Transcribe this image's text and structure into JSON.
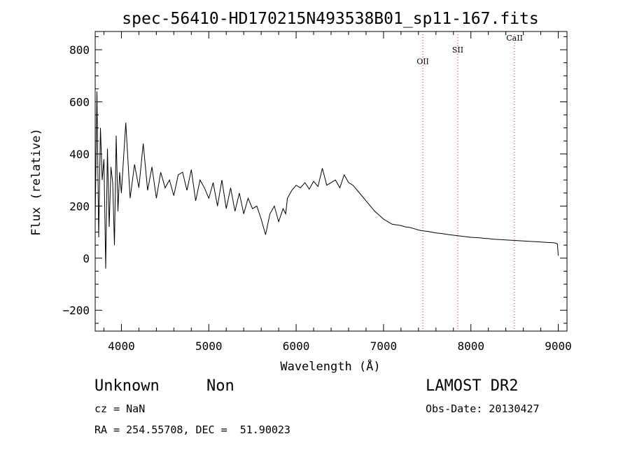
{
  "chart_data": {
    "type": "line",
    "title": "spec-56410-HD170215N493538B01_sp11-167.fits",
    "xlabel": "Wavelength (Å)",
    "ylabel": "Flux (relative)",
    "xlim": [
      3700,
      9100
    ],
    "ylim": [
      -280,
      870
    ],
    "xticks": [
      4000,
      5000,
      6000,
      7000,
      8000,
      9000
    ],
    "yticks": [
      -200,
      0,
      200,
      400,
      600,
      800
    ],
    "grid": false,
    "series": [
      {
        "color": "#000000",
        "x": [
          3700,
          3720,
          3740,
          3760,
          3780,
          3800,
          3820,
          3840,
          3860,
          3880,
          3900,
          3920,
          3940,
          3960,
          3980,
          4000,
          4050,
          4100,
          4150,
          4200,
          4250,
          4300,
          4350,
          4400,
          4450,
          4500,
          4550,
          4600,
          4650,
          4700,
          4750,
          4800,
          4850,
          4900,
          4950,
          5000,
          5050,
          5100,
          5150,
          5200,
          5250,
          5300,
          5350,
          5400,
          5450,
          5500,
          5550,
          5600,
          5650,
          5700,
          5750,
          5800,
          5850,
          5880,
          5900,
          5950,
          6000,
          6050,
          6100,
          6150,
          6200,
          6250,
          6300,
          6350,
          6400,
          6450,
          6500,
          6550,
          6600,
          6650,
          6700,
          6750,
          6800,
          6850,
          6900,
          6950,
          7000,
          7050,
          7100,
          7150,
          7200,
          7250,
          7300,
          7350,
          7400,
          7450,
          7500,
          7550,
          7600,
          7650,
          7700,
          7750,
          7800,
          7850,
          7900,
          7950,
          8000,
          8050,
          8100,
          8150,
          8200,
          8250,
          8300,
          8350,
          8400,
          8450,
          8500,
          8550,
          8600,
          8650,
          8700,
          8750,
          8800,
          8850,
          8900,
          8950,
          8990,
          9000
        ],
        "y": [
          150,
          640,
          80,
          500,
          300,
          380,
          -40,
          420,
          120,
          350,
          290,
          50,
          470,
          180,
          330,
          250,
          520,
          230,
          360,
          270,
          440,
          260,
          350,
          230,
          330,
          270,
          300,
          240,
          320,
          330,
          260,
          340,
          220,
          300,
          270,
          230,
          290,
          200,
          300,
          190,
          270,
          180,
          250,
          170,
          230,
          190,
          200,
          150,
          90,
          170,
          200,
          140,
          190,
          170,
          230,
          260,
          280,
          270,
          290,
          265,
          295,
          275,
          345,
          280,
          290,
          300,
          270,
          320,
          290,
          280,
          260,
          240,
          220,
          200,
          180,
          165,
          150,
          140,
          130,
          128,
          125,
          120,
          118,
          113,
          108,
          105,
          103,
          100,
          97,
          95,
          93,
          90,
          88,
          86,
          84,
          82,
          80,
          79,
          78,
          76,
          75,
          73,
          72,
          71,
          70,
          69,
          68,
          67,
          66,
          65,
          64,
          63,
          62,
          61,
          60,
          59,
          55,
          10
        ]
      }
    ],
    "lines": [
      {
        "label": "OII",
        "x": 7450,
        "label_y": 745,
        "color": "#cc3333"
      },
      {
        "label": "SII",
        "x": 7850,
        "label_y": 790,
        "color": "#cc3333"
      },
      {
        "label": "CaII",
        "x": 8500,
        "label_y": 835,
        "color": "#cc3333"
      }
    ]
  },
  "info": {
    "class": "Unknown",
    "subclass": "Non",
    "survey": "LAMOST DR2",
    "cz": "cz = NaN",
    "obs_date": "Obs-Date: 20130427",
    "coords": "RA = 254.55708, DEC =  51.90023"
  }
}
